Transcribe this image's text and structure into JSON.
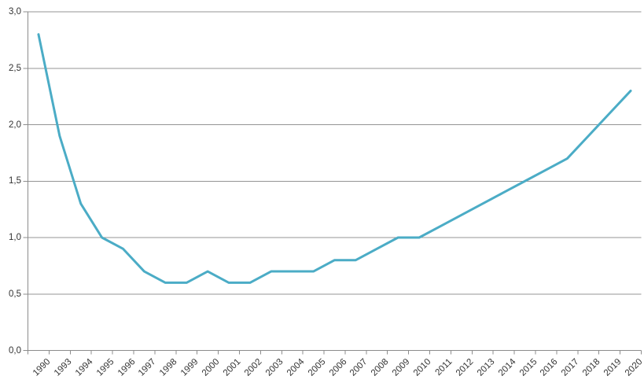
{
  "chart_data": {
    "type": "line",
    "title": "",
    "xlabel": "",
    "ylabel": "",
    "categories": [
      "1990",
      "1993",
      "1994",
      "1995",
      "1996",
      "1997",
      "1998",
      "1999",
      "2000",
      "2001",
      "2002",
      "2003",
      "2004",
      "2005",
      "2006",
      "2007",
      "2008",
      "2009",
      "2010",
      "2011",
      "2012",
      "2013",
      "2014",
      "2015",
      "2016",
      "2017",
      "2018",
      "2019",
      "2020"
    ],
    "values": [
      2.8,
      1.9,
      1.3,
      1.0,
      0.9,
      0.7,
      0.6,
      0.6,
      0.7,
      0.6,
      0.6,
      0.7,
      0.7,
      0.7,
      0.8,
      0.8,
      0.9,
      1.0,
      1.0,
      1.1,
      1.2,
      1.3,
      1.4,
      1.5,
      1.6,
      1.7,
      1.9,
      2.1,
      2.3
    ],
    "ylim": [
      0,
      3
    ],
    "yticks": [
      {
        "value": 0.0,
        "label": "0,0"
      },
      {
        "value": 0.5,
        "label": "0,5"
      },
      {
        "value": 1.0,
        "label": "1,0"
      },
      {
        "value": 1.5,
        "label": "1,5"
      },
      {
        "value": 2.0,
        "label": "2,0"
      },
      {
        "value": 2.5,
        "label": "2,5"
      },
      {
        "value": 3.0,
        "label": "3,0"
      }
    ],
    "grid": true,
    "legend": false,
    "colors": {
      "line": "#4BACC6",
      "gridline": "#949494",
      "axis": "#8C8C8C",
      "label": "#333333",
      "background": "#FFFFFF"
    }
  }
}
